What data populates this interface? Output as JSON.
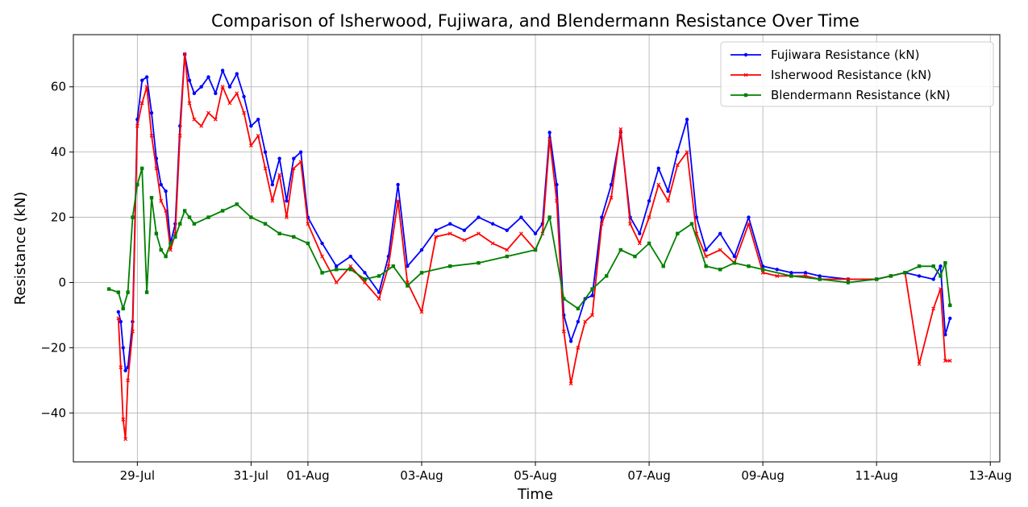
{
  "chart_data": {
    "type": "line",
    "title": "Comparison of Isherwood, Fujiwara, and Blendermann Resistance Over Time",
    "xlabel": "Time",
    "ylabel": "Resistance (kN)",
    "xlim": [
      "2024-07-27T21:00",
      "2024-08-13T04:00"
    ],
    "ylim": [
      -55,
      76
    ],
    "x_ticks": [
      {
        "date": "2024-07-29",
        "label": "29-Jul"
      },
      {
        "date": "2024-07-31",
        "label": "31-Jul"
      },
      {
        "date": "2024-08-01",
        "label": "01-Aug"
      },
      {
        "date": "2024-08-03",
        "label": "03-Aug"
      },
      {
        "date": "2024-08-05",
        "label": "05-Aug"
      },
      {
        "date": "2024-08-07",
        "label": "07-Aug"
      },
      {
        "date": "2024-08-09",
        "label": "09-Aug"
      },
      {
        "date": "2024-08-11",
        "label": "11-Aug"
      },
      {
        "date": "2024-08-13",
        "label": "13-Aug"
      }
    ],
    "y_ticks": [
      -40,
      -20,
      0,
      20,
      40,
      60
    ],
    "grid": true,
    "legend": "top-right",
    "series": [
      {
        "name": "Fujiwara Resistance (kN)",
        "color": "#0000ff",
        "marker": "circle",
        "x": [
          "2024-07-28T16:00",
          "2024-07-28T17:00",
          "2024-07-28T18:00",
          "2024-07-28T19:00",
          "2024-07-28T20:00",
          "2024-07-28T22:00",
          "2024-07-29T00:00",
          "2024-07-29T02:00",
          "2024-07-29T04:00",
          "2024-07-29T06:00",
          "2024-07-29T08:00",
          "2024-07-29T10:00",
          "2024-07-29T12:00",
          "2024-07-29T14:00",
          "2024-07-29T16:00",
          "2024-07-29T18:00",
          "2024-07-29T20:00",
          "2024-07-29T22:00",
          "2024-07-30T00:00",
          "2024-07-30T03:00",
          "2024-07-30T06:00",
          "2024-07-30T09:00",
          "2024-07-30T12:00",
          "2024-07-30T15:00",
          "2024-07-30T18:00",
          "2024-07-30T21:00",
          "2024-07-31T00:00",
          "2024-07-31T03:00",
          "2024-07-31T06:00",
          "2024-07-31T09:00",
          "2024-07-31T12:00",
          "2024-07-31T15:00",
          "2024-07-31T18:00",
          "2024-07-31T21:00",
          "2024-08-01T00:00",
          "2024-08-01T06:00",
          "2024-08-01T12:00",
          "2024-08-01T18:00",
          "2024-08-02T00:00",
          "2024-08-02T06:00",
          "2024-08-02T10:00",
          "2024-08-02T14:00",
          "2024-08-02T18:00",
          "2024-08-03T00:00",
          "2024-08-03T06:00",
          "2024-08-03T12:00",
          "2024-08-03T18:00",
          "2024-08-04T00:00",
          "2024-08-04T06:00",
          "2024-08-04T12:00",
          "2024-08-04T18:00",
          "2024-08-05T00:00",
          "2024-08-05T03:00",
          "2024-08-05T06:00",
          "2024-08-05T09:00",
          "2024-08-05T12:00",
          "2024-08-05T15:00",
          "2024-08-05T18:00",
          "2024-08-05T21:00",
          "2024-08-06T00:00",
          "2024-08-06T04:00",
          "2024-08-06T08:00",
          "2024-08-06T12:00",
          "2024-08-06T16:00",
          "2024-08-06T20:00",
          "2024-08-07T00:00",
          "2024-08-07T04:00",
          "2024-08-07T08:00",
          "2024-08-07T12:00",
          "2024-08-07T16:00",
          "2024-08-07T20:00",
          "2024-08-08T00:00",
          "2024-08-08T06:00",
          "2024-08-08T12:00",
          "2024-08-08T18:00",
          "2024-08-09T00:00",
          "2024-08-09T06:00",
          "2024-08-09T12:00",
          "2024-08-09T18:00",
          "2024-08-10T00:00",
          "2024-08-10T12:00",
          "2024-08-11T00:00",
          "2024-08-11T06:00",
          "2024-08-11T12:00",
          "2024-08-11T18:00",
          "2024-08-12T00:00",
          "2024-08-12T03:00",
          "2024-08-12T05:00",
          "2024-08-12T07:00"
        ],
        "values": [
          -9,
          -12,
          -20,
          -27,
          -26,
          -12,
          50,
          62,
          63,
          52,
          38,
          30,
          28,
          12,
          18,
          48,
          70,
          62,
          58,
          60,
          63,
          58,
          65,
          60,
          64,
          57,
          48,
          50,
          40,
          30,
          38,
          25,
          38,
          40,
          20,
          12,
          5,
          8,
          3,
          -3,
          8,
          30,
          5,
          10,
          16,
          18,
          16,
          20,
          18,
          16,
          20,
          15,
          18,
          46,
          30,
          -10,
          -18,
          -12,
          -5,
          -4,
          20,
          30,
          46,
          20,
          15,
          25,
          35,
          28,
          40,
          50,
          20,
          10,
          15,
          8,
          20,
          5,
          4,
          3,
          3,
          2,
          1,
          1,
          2,
          3,
          2,
          1,
          5,
          -16,
          -11
        ]
      },
      {
        "name": "Isherwood Resistance (kN)",
        "color": "#ff0000",
        "marker": "x",
        "x": [
          "2024-07-28T16:00",
          "2024-07-28T17:00",
          "2024-07-28T18:00",
          "2024-07-28T19:00",
          "2024-07-28T20:00",
          "2024-07-28T22:00",
          "2024-07-29T00:00",
          "2024-07-29T02:00",
          "2024-07-29T04:00",
          "2024-07-29T06:00",
          "2024-07-29T08:00",
          "2024-07-29T10:00",
          "2024-07-29T12:00",
          "2024-07-29T14:00",
          "2024-07-29T16:00",
          "2024-07-29T18:00",
          "2024-07-29T20:00",
          "2024-07-29T22:00",
          "2024-07-30T00:00",
          "2024-07-30T03:00",
          "2024-07-30T06:00",
          "2024-07-30T09:00",
          "2024-07-30T12:00",
          "2024-07-30T15:00",
          "2024-07-30T18:00",
          "2024-07-30T21:00",
          "2024-07-31T00:00",
          "2024-07-31T03:00",
          "2024-07-31T06:00",
          "2024-07-31T09:00",
          "2024-07-31T12:00",
          "2024-07-31T15:00",
          "2024-07-31T18:00",
          "2024-07-31T21:00",
          "2024-08-01T00:00",
          "2024-08-01T06:00",
          "2024-08-01T12:00",
          "2024-08-01T18:00",
          "2024-08-02T00:00",
          "2024-08-02T06:00",
          "2024-08-02T10:00",
          "2024-08-02T14:00",
          "2024-08-02T18:00",
          "2024-08-03T00:00",
          "2024-08-03T06:00",
          "2024-08-03T12:00",
          "2024-08-03T18:00",
          "2024-08-04T00:00",
          "2024-08-04T06:00",
          "2024-08-04T12:00",
          "2024-08-04T18:00",
          "2024-08-05T00:00",
          "2024-08-05T03:00",
          "2024-08-05T06:00",
          "2024-08-05T09:00",
          "2024-08-05T12:00",
          "2024-08-05T15:00",
          "2024-08-05T18:00",
          "2024-08-05T21:00",
          "2024-08-06T00:00",
          "2024-08-06T04:00",
          "2024-08-06T08:00",
          "2024-08-06T12:00",
          "2024-08-06T16:00",
          "2024-08-06T20:00",
          "2024-08-07T00:00",
          "2024-08-07T04:00",
          "2024-08-07T08:00",
          "2024-08-07T12:00",
          "2024-08-07T16:00",
          "2024-08-07T20:00",
          "2024-08-08T00:00",
          "2024-08-08T06:00",
          "2024-08-08T12:00",
          "2024-08-08T18:00",
          "2024-08-09T00:00",
          "2024-08-09T06:00",
          "2024-08-09T12:00",
          "2024-08-09T18:00",
          "2024-08-10T00:00",
          "2024-08-10T12:00",
          "2024-08-11T00:00",
          "2024-08-11T06:00",
          "2024-08-11T12:00",
          "2024-08-11T18:00",
          "2024-08-12T00:00",
          "2024-08-12T03:00",
          "2024-08-12T05:00",
          "2024-08-12T07:00"
        ],
        "values": [
          -11,
          -26,
          -42,
          -48,
          -30,
          -15,
          48,
          55,
          60,
          45,
          35,
          25,
          22,
          10,
          15,
          45,
          70,
          55,
          50,
          48,
          52,
          50,
          60,
          55,
          58,
          52,
          42,
          45,
          35,
          25,
          33,
          20,
          35,
          37,
          18,
          8,
          0,
          5,
          0,
          -5,
          5,
          25,
          0,
          -9,
          14,
          15,
          13,
          15,
          12,
          10,
          15,
          10,
          15,
          44,
          25,
          -15,
          -31,
          -20,
          -12,
          -10,
          18,
          26,
          47,
          18,
          12,
          20,
          30,
          25,
          36,
          40,
          15,
          8,
          10,
          6,
          18,
          3,
          2,
          2,
          2,
          1,
          1,
          1,
          2,
          3,
          -25,
          -8,
          -2,
          -24,
          -24
        ]
      },
      {
        "name": "Blendermann Resistance (kN)",
        "color": "#008000",
        "marker": "square",
        "x": [
          "2024-07-28T12:00",
          "2024-07-28T16:00",
          "2024-07-28T18:00",
          "2024-07-28T20:00",
          "2024-07-28T22:00",
          "2024-07-29T00:00",
          "2024-07-29T02:00",
          "2024-07-29T04:00",
          "2024-07-29T06:00",
          "2024-07-29T08:00",
          "2024-07-29T10:00",
          "2024-07-29T12:00",
          "2024-07-29T14:00",
          "2024-07-29T16:00",
          "2024-07-29T18:00",
          "2024-07-29T20:00",
          "2024-07-29T22:00",
          "2024-07-30T00:00",
          "2024-07-30T06:00",
          "2024-07-30T12:00",
          "2024-07-30T18:00",
          "2024-07-31T00:00",
          "2024-07-31T06:00",
          "2024-07-31T12:00",
          "2024-07-31T18:00",
          "2024-08-01T00:00",
          "2024-08-01T06:00",
          "2024-08-01T12:00",
          "2024-08-01T18:00",
          "2024-08-02T00:00",
          "2024-08-02T06:00",
          "2024-08-02T12:00",
          "2024-08-02T18:00",
          "2024-08-03T00:00",
          "2024-08-03T12:00",
          "2024-08-04T00:00",
          "2024-08-04T12:00",
          "2024-08-05T00:00",
          "2024-08-05T06:00",
          "2024-08-05T12:00",
          "2024-08-05T18:00",
          "2024-08-06T00:00",
          "2024-08-06T06:00",
          "2024-08-06T12:00",
          "2024-08-06T18:00",
          "2024-08-07T00:00",
          "2024-08-07T06:00",
          "2024-08-07T12:00",
          "2024-08-07T18:00",
          "2024-08-08T00:00",
          "2024-08-08T06:00",
          "2024-08-08T12:00",
          "2024-08-08T18:00",
          "2024-08-09T00:00",
          "2024-08-09T12:00",
          "2024-08-10T00:00",
          "2024-08-10T12:00",
          "2024-08-11T00:00",
          "2024-08-11T06:00",
          "2024-08-11T12:00",
          "2024-08-11T18:00",
          "2024-08-12T00:00",
          "2024-08-12T03:00",
          "2024-08-12T05:00",
          "2024-08-12T07:00"
        ],
        "values": [
          -2,
          -3,
          -8,
          -3,
          20,
          30,
          35,
          -3,
          26,
          15,
          10,
          8,
          12,
          14,
          18,
          22,
          20,
          18,
          20,
          22,
          24,
          20,
          18,
          15,
          14,
          12,
          3,
          4,
          4,
          1,
          2,
          5,
          -1,
          3,
          5,
          6,
          8,
          10,
          20,
          -5,
          -8,
          -2,
          2,
          10,
          8,
          12,
          5,
          15,
          18,
          5,
          4,
          6,
          5,
          4,
          2,
          1,
          0,
          1,
          2,
          3,
          5,
          5,
          2,
          6,
          -7
        ]
      }
    ]
  }
}
